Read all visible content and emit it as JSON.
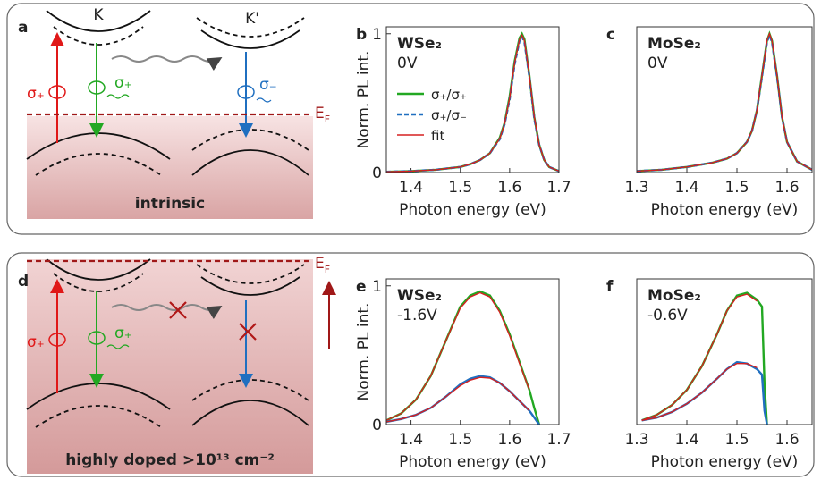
{
  "diagram_a": {
    "panel_label": "a",
    "valley_k": "K",
    "valley_k_prime": "K'",
    "sigma_red": "σ₊",
    "sigma_green": "σ₊",
    "sigma_blue": "σ₋",
    "fermi": {
      "main": "E",
      "sub": "F"
    },
    "caption": "intrinsic"
  },
  "diagram_d": {
    "panel_label": "d",
    "sigma_red": "σ₊",
    "sigma_green": "σ₊",
    "fermi": {
      "main": "E",
      "sub": "F"
    },
    "caption": "highly doped >10¹³ cm⁻²"
  },
  "chart_data": [
    {
      "type": "line",
      "panel_label": "b",
      "sample": "WSe₂",
      "voltage": "0V",
      "ylabel": "Norm. PL int.",
      "xlabel": "Photon energy (eV)",
      "xlim": [
        1.35,
        1.7
      ],
      "xticks": [
        1.4,
        1.5,
        1.6,
        1.7
      ],
      "ylim": [
        0,
        1.05
      ],
      "yticks": [
        0,
        1
      ],
      "x": [
        1.35,
        1.4,
        1.45,
        1.5,
        1.52,
        1.54,
        1.56,
        1.58,
        1.59,
        1.6,
        1.61,
        1.62,
        1.625,
        1.63,
        1.64,
        1.65,
        1.66,
        1.67,
        1.68,
        1.7
      ],
      "series": [
        {
          "name": "σ₊/σ₊",
          "color": "#22a822",
          "style": "solid",
          "values": [
            0.005,
            0.01,
            0.02,
            0.04,
            0.06,
            0.09,
            0.14,
            0.25,
            0.36,
            0.55,
            0.8,
            0.97,
            1.0,
            0.96,
            0.7,
            0.4,
            0.2,
            0.09,
            0.04,
            0.01
          ]
        },
        {
          "name": "σ₊/σ₋",
          "color": "#1f6fc0",
          "style": "dashed",
          "values": [
            0.005,
            0.01,
            0.02,
            0.04,
            0.06,
            0.09,
            0.14,
            0.24,
            0.35,
            0.53,
            0.78,
            0.95,
            0.98,
            0.94,
            0.69,
            0.39,
            0.2,
            0.09,
            0.04,
            0.01
          ]
        },
        {
          "name": "fit",
          "color": "#d62020",
          "style": "thin",
          "values": [
            0.005,
            0.01,
            0.02,
            0.04,
            0.06,
            0.09,
            0.14,
            0.245,
            0.355,
            0.54,
            0.79,
            0.96,
            0.99,
            0.95,
            0.7,
            0.4,
            0.2,
            0.09,
            0.04,
            0.01
          ]
        }
      ]
    },
    {
      "type": "line",
      "panel_label": "c",
      "sample": "MoSe₂",
      "voltage": "0V",
      "xlabel": "Photon energy (eV)",
      "xlim": [
        1.3,
        1.65
      ],
      "xticks": [
        1.3,
        1.4,
        1.5,
        1.6
      ],
      "ylim": [
        0,
        1.05
      ],
      "x": [
        1.3,
        1.35,
        1.4,
        1.45,
        1.48,
        1.5,
        1.52,
        1.53,
        1.54,
        1.55,
        1.56,
        1.565,
        1.57,
        1.58,
        1.59,
        1.6,
        1.62,
        1.65
      ],
      "series": [
        {
          "color": "#22a822",
          "style": "solid",
          "values": [
            0.01,
            0.02,
            0.04,
            0.07,
            0.1,
            0.14,
            0.22,
            0.3,
            0.45,
            0.7,
            0.95,
            1.0,
            0.95,
            0.7,
            0.4,
            0.22,
            0.08,
            0.02
          ]
        },
        {
          "color": "#1f6fc0",
          "style": "dashed",
          "values": [
            0.01,
            0.02,
            0.04,
            0.07,
            0.1,
            0.14,
            0.22,
            0.3,
            0.45,
            0.69,
            0.94,
            0.99,
            0.94,
            0.69,
            0.4,
            0.22,
            0.08,
            0.02
          ]
        },
        {
          "color": "#d62020",
          "style": "thin",
          "values": [
            0.01,
            0.02,
            0.04,
            0.07,
            0.1,
            0.14,
            0.22,
            0.3,
            0.45,
            0.7,
            0.95,
            1.0,
            0.95,
            0.7,
            0.4,
            0.22,
            0.08,
            0.02
          ]
        }
      ]
    },
    {
      "type": "line",
      "panel_label": "e",
      "sample": "WSe₂",
      "voltage": "-1.6V",
      "ylabel": "Norm. PL int.",
      "xlabel": "Photon energy (eV)",
      "xlim": [
        1.35,
        1.7
      ],
      "xticks": [
        1.4,
        1.5,
        1.6,
        1.7
      ],
      "ylim": [
        0,
        1.05
      ],
      "yticks": [
        0,
        1
      ],
      "x": [
        1.35,
        1.38,
        1.41,
        1.44,
        1.47,
        1.5,
        1.52,
        1.54,
        1.56,
        1.58,
        1.6,
        1.62,
        1.64,
        1.65,
        1.66
      ],
      "series": [
        {
          "color": "#22a822",
          "style": "solid",
          "values": [
            0.03,
            0.08,
            0.18,
            0.35,
            0.6,
            0.85,
            0.93,
            0.96,
            0.93,
            0.82,
            0.65,
            0.45,
            0.25,
            0.12,
            0.0
          ]
        },
        {
          "color": "#1f6fc0",
          "style": "solid",
          "values": [
            0.02,
            0.04,
            0.07,
            0.12,
            0.2,
            0.29,
            0.33,
            0.35,
            0.34,
            0.3,
            0.24,
            0.17,
            0.1,
            0.05,
            0.0
          ]
        },
        {
          "color": "#d62020",
          "style": "thin",
          "values": [
            0.03,
            0.08,
            0.18,
            0.35,
            0.6,
            0.84,
            0.92,
            0.95,
            0.92,
            0.81,
            0.64,
            0.44,
            0.25,
            null,
            null
          ]
        },
        {
          "color": "#d62020",
          "style": "thin",
          "values": [
            0.02,
            0.04,
            0.07,
            0.12,
            0.2,
            0.28,
            0.32,
            0.34,
            0.335,
            0.3,
            0.24,
            0.17,
            0.1,
            null,
            null
          ]
        }
      ]
    },
    {
      "type": "line",
      "panel_label": "f",
      "sample": "MoSe₂",
      "voltage": "-0.6V",
      "xlabel": "Photon energy (eV)",
      "xlim": [
        1.3,
        1.65
      ],
      "xticks": [
        1.3,
        1.4,
        1.5,
        1.6
      ],
      "ylim": [
        0,
        1.05
      ],
      "x": [
        1.31,
        1.34,
        1.37,
        1.4,
        1.43,
        1.46,
        1.48,
        1.5,
        1.52,
        1.54,
        1.55,
        1.555,
        1.56
      ],
      "series": [
        {
          "color": "#22a822",
          "style": "solid",
          "values": [
            0.03,
            0.07,
            0.14,
            0.25,
            0.42,
            0.65,
            0.82,
            0.93,
            0.95,
            0.9,
            0.85,
            0.3,
            0.0
          ]
        },
        {
          "color": "#1f6fc0",
          "style": "solid",
          "values": [
            0.03,
            0.05,
            0.09,
            0.15,
            0.23,
            0.33,
            0.4,
            0.45,
            0.44,
            0.4,
            0.36,
            0.1,
            0.0
          ]
        },
        {
          "color": "#d62020",
          "style": "thin",
          "values": [
            0.03,
            0.07,
            0.14,
            0.25,
            0.42,
            0.65,
            0.82,
            0.92,
            0.94,
            0.89,
            null,
            null,
            null
          ]
        },
        {
          "color": "#d62020",
          "style": "thin",
          "values": [
            0.03,
            0.05,
            0.09,
            0.15,
            0.23,
            0.33,
            0.4,
            0.44,
            0.44,
            0.41,
            null,
            null,
            null
          ]
        }
      ]
    }
  ]
}
